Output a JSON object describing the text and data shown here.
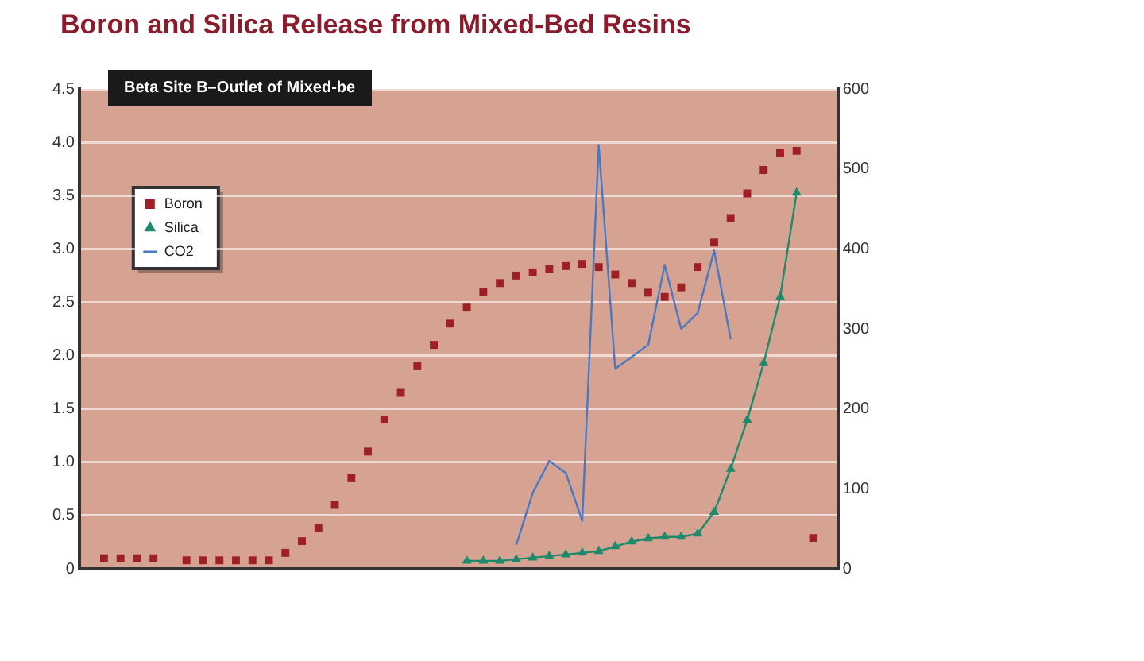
{
  "chart_data": {
    "type": "scatter",
    "title": "Boron and Silica Release from Mixed-Bed Resins",
    "subtitle": "Beta Site B–Outlet of Mixed-be",
    "categories": [
      null,
      null,
      null,
      null,
      null,
      null,
      null,
      null,
      null,
      null,
      null,
      null,
      null,
      null,
      null,
      null,
      null,
      null,
      null,
      null,
      null,
      null,
      null,
      null,
      null,
      null,
      null,
      null,
      null,
      null,
      null,
      null,
      null,
      null,
      null,
      null,
      null,
      null,
      null,
      null,
      null,
      null,
      null,
      null,
      null,
      null
    ],
    "series": [
      {
        "name": "Boron",
        "type": "scatter",
        "marker": "square",
        "color": "#9e1f24",
        "values": [
          null,
          0.1,
          0.1,
          0.1,
          0.1,
          null,
          0.08,
          0.08,
          0.08,
          0.08,
          0.08,
          0.08,
          0.15,
          0.26,
          0.38,
          0.6,
          0.85,
          1.1,
          1.4,
          1.65,
          1.9,
          2.1,
          2.3,
          2.45,
          2.6,
          2.68,
          2.75,
          2.78,
          2.81,
          2.84,
          2.86,
          2.83,
          2.76,
          2.68,
          2.59,
          2.55,
          2.64,
          2.83,
          3.06,
          3.29,
          3.52,
          3.74,
          3.9,
          3.92,
          0.29,
          null
        ]
      },
      {
        "name": "Silica",
        "type": "line",
        "marker": "triangle",
        "color": "#1c8a6b",
        "values": [
          null,
          null,
          null,
          null,
          null,
          null,
          null,
          null,
          null,
          null,
          null,
          null,
          null,
          null,
          null,
          null,
          null,
          null,
          null,
          null,
          null,
          null,
          null,
          10,
          10,
          10,
          12,
          14,
          16,
          18,
          20,
          22,
          28,
          34,
          38,
          40,
          40,
          44,
          71,
          125,
          186,
          257,
          340,
          470,
          null,
          null
        ],
        "axis": "y2"
      },
      {
        "name": "CO2",
        "type": "line",
        "marker": "none",
        "color": "#4a78c2",
        "values": [
          null,
          null,
          null,
          null,
          null,
          null,
          null,
          null,
          null,
          null,
          null,
          null,
          null,
          null,
          null,
          null,
          null,
          null,
          null,
          null,
          null,
          null,
          null,
          null,
          null,
          null,
          30,
          95,
          135,
          120,
          60,
          530,
          250,
          265,
          280,
          380,
          300,
          320,
          398,
          287,
          null,
          null,
          null,
          null,
          null,
          null
        ],
        "axis": "y2"
      }
    ],
    "ylim": [
      0,
      4.5
    ],
    "yticks": [
      0,
      0.5,
      {
        "value": 1,
        "label": "1.0"
      },
      1.5,
      {
        "value": 2,
        "label": "2.0"
      },
      2.5,
      {
        "value": 3,
        "label": "3.0"
      },
      3.5,
      {
        "value": 4,
        "label": "4.0"
      },
      4.5
    ],
    "y2lim": [
      0,
      600
    ],
    "y2ticks": [
      0,
      100,
      200,
      300,
      400,
      500,
      600
    ],
    "grid": "y",
    "legend": "top left"
  }
}
